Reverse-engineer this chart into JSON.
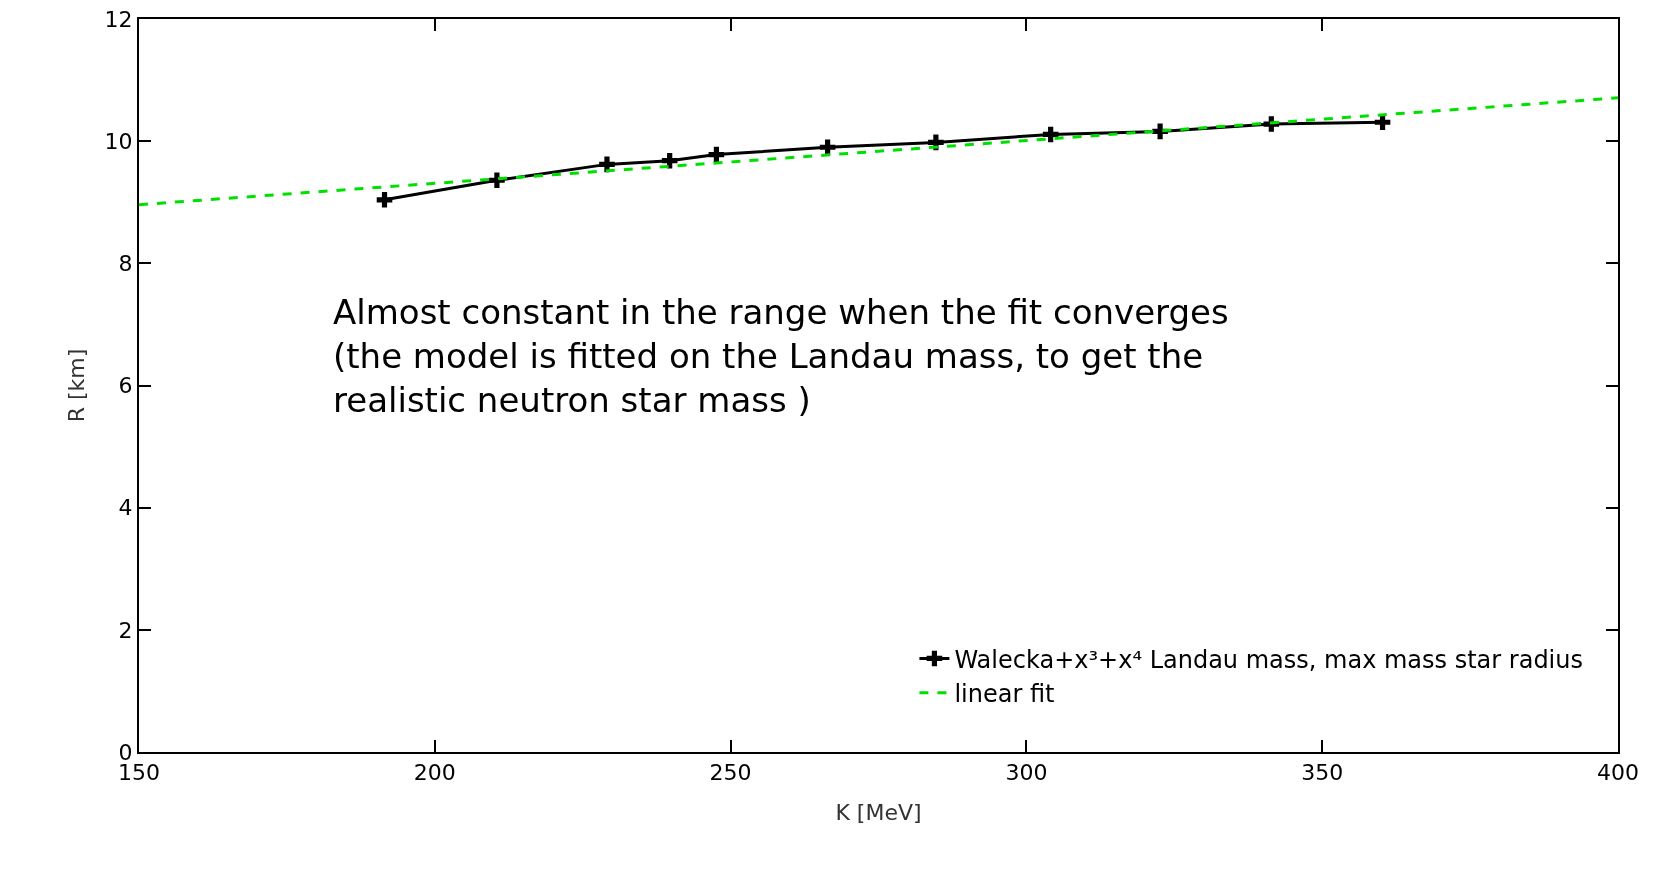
{
  "chart_data": {
    "type": "line",
    "xlabel": "K [MeV]",
    "ylabel": "R [km]",
    "xlim": [
      150,
      400
    ],
    "xticks": [
      150,
      200,
      250,
      300,
      350,
      400
    ],
    "ylim": [
      0,
      12
    ],
    "yticks": [
      0,
      2,
      4,
      6,
      8,
      10,
      12
    ],
    "grid": false,
    "legend": "bottom right",
    "x": [
      191.5,
      210.5,
      229.1,
      239.7,
      247.6,
      266.4,
      284.7,
      304.1,
      322.6,
      341.4,
      360.2
    ],
    "series": [
      {
        "name": "Walecka+x³+x⁴ Landau mass, max mass star radius",
        "color": "#000000",
        "marker": "cross",
        "line_style": "solid",
        "values": [
          9.04,
          9.36,
          9.62,
          9.68,
          9.78,
          9.9,
          9.98,
          10.11,
          10.16,
          10.28,
          10.31
        ]
      },
      {
        "name": "linear fit",
        "type": "line",
        "color": "#00e000",
        "marker": "none",
        "line_style": "dashed",
        "x": [
          150,
          400
        ],
        "values": [
          8.96,
          10.71
        ]
      }
    ],
    "annotations": [
      "Almost constant in the range when the fit converges\n(the model is fitted on the Landau mass, to get the\nrealistic neutron star mass )"
    ]
  }
}
